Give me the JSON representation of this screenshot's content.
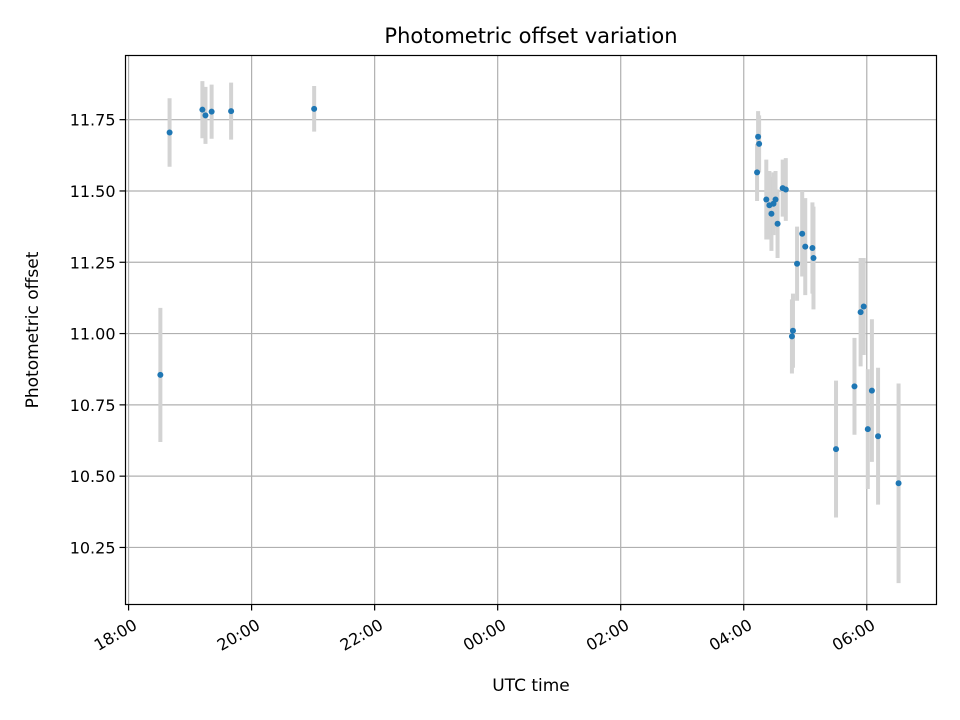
{
  "chart_data": {
    "type": "scatter",
    "title": "Photometric offset variation",
    "xlabel": "UTC time",
    "ylabel": "Photometric offset",
    "x_axis": "time",
    "xlim": [
      "2000-01-01 17:57",
      "2000-01-02 07:08"
    ],
    "ylim": [
      10.05,
      11.975
    ],
    "x_ticks": [
      {
        "t": "2000-01-01 18:00",
        "label": "18:00"
      },
      {
        "t": "2000-01-01 20:00",
        "label": "20:00"
      },
      {
        "t": "2000-01-01 22:00",
        "label": "22:00"
      },
      {
        "t": "2000-01-02 00:00",
        "label": "00:00"
      },
      {
        "t": "2000-01-02 02:00",
        "label": "02:00"
      },
      {
        "t": "2000-01-02 04:00",
        "label": "04:00"
      },
      {
        "t": "2000-01-02 06:00",
        "label": "06:00"
      }
    ],
    "y_ticks": [
      10.25,
      10.5,
      10.75,
      11.0,
      11.25,
      11.5,
      11.75
    ],
    "y_tick_labels": [
      "10.25",
      "10.50",
      "10.75",
      "11.00",
      "11.25",
      "11.50",
      "11.75"
    ],
    "x_tick_rotation": "30deg",
    "grid": true,
    "legend": "none",
    "marker_color": "#1f77b4",
    "errorbar_color": "#d3d3d3",
    "points": [
      {
        "t": "2000-01-01 18:31",
        "y": 10.855,
        "err": 0.235
      },
      {
        "t": "2000-01-01 18:40",
        "y": 11.705,
        "err": 0.12
      },
      {
        "t": "2000-01-01 19:12",
        "y": 11.785,
        "err": 0.1
      },
      {
        "t": "2000-01-01 19:15",
        "y": 11.765,
        "err": 0.1
      },
      {
        "t": "2000-01-01 19:21",
        "y": 11.778,
        "err": 0.095
      },
      {
        "t": "2000-01-01 19:40",
        "y": 11.78,
        "err": 0.1
      },
      {
        "t": "2000-01-01 21:01",
        "y": 11.788,
        "err": 0.08
      },
      {
        "t": "2000-01-02 04:13",
        "y": 11.565,
        "err": 0.1
      },
      {
        "t": "2000-01-02 04:14",
        "y": 11.69,
        "err": 0.09
      },
      {
        "t": "2000-01-02 04:15",
        "y": 11.665,
        "err": 0.1
      },
      {
        "t": "2000-01-02 04:22",
        "y": 11.47,
        "err": 0.14
      },
      {
        "t": "2000-01-02 04:25",
        "y": 11.45,
        "err": 0.12
      },
      {
        "t": "2000-01-02 04:27",
        "y": 11.42,
        "err": 0.13
      },
      {
        "t": "2000-01-02 04:29",
        "y": 11.455,
        "err": 0.11
      },
      {
        "t": "2000-01-02 04:31",
        "y": 11.47,
        "err": 0.1
      },
      {
        "t": "2000-01-02 04:33",
        "y": 11.385,
        "err": 0.12
      },
      {
        "t": "2000-01-02 04:38",
        "y": 11.51,
        "err": 0.1
      },
      {
        "t": "2000-01-02 04:41",
        "y": 11.505,
        "err": 0.11
      },
      {
        "t": "2000-01-02 04:47",
        "y": 10.99,
        "err": 0.13
      },
      {
        "t": "2000-01-02 04:48",
        "y": 11.01,
        "err": 0.13
      },
      {
        "t": "2000-01-02 04:52",
        "y": 11.245,
        "err": 0.13
      },
      {
        "t": "2000-01-02 04:57",
        "y": 11.35,
        "err": 0.15
      },
      {
        "t": "2000-01-02 05:00",
        "y": 11.305,
        "err": 0.17
      },
      {
        "t": "2000-01-02 05:07",
        "y": 11.3,
        "err": 0.16
      },
      {
        "t": "2000-01-02 05:08",
        "y": 11.265,
        "err": 0.18
      },
      {
        "t": "2000-01-02 05:30",
        "y": 10.595,
        "err": 0.24
      },
      {
        "t": "2000-01-02 05:48",
        "y": 10.815,
        "err": 0.17
      },
      {
        "t": "2000-01-02 05:54",
        "y": 11.075,
        "err": 0.19
      },
      {
        "t": "2000-01-02 05:57",
        "y": 11.095,
        "err": 0.17
      },
      {
        "t": "2000-01-02 06:01",
        "y": 10.665,
        "err": 0.21
      },
      {
        "t": "2000-01-02 06:05",
        "y": 10.8,
        "err": 0.25
      },
      {
        "t": "2000-01-02 06:11",
        "y": 10.64,
        "err": 0.24
      },
      {
        "t": "2000-01-02 06:31",
        "y": 10.475,
        "err": 0.35
      }
    ]
  }
}
